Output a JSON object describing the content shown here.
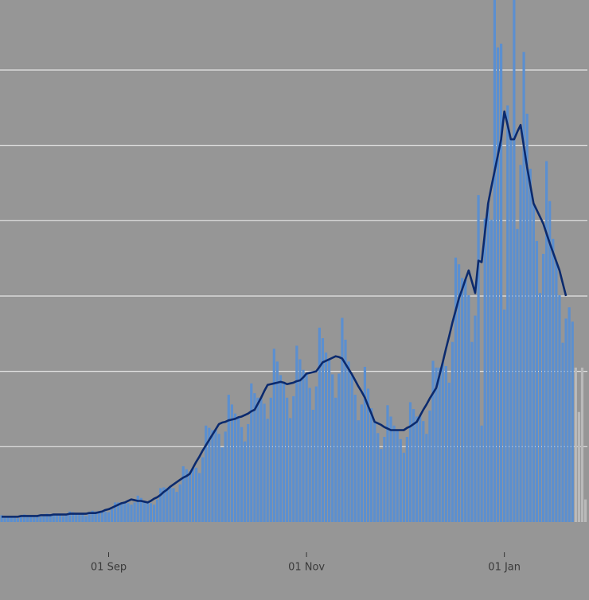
{
  "chart_data": {
    "type": "bar",
    "categories": [
      null,
      null,
      null,
      null,
      null,
      null,
      null,
      null,
      null,
      null,
      null,
      null,
      null,
      null,
      null,
      null,
      null,
      null,
      null,
      null,
      null,
      null,
      null,
      null,
      null,
      null,
      null,
      null,
      null,
      null,
      null,
      null,
      null,
      "01 Sep",
      null,
      null,
      null,
      null,
      null,
      null,
      null,
      null,
      null,
      null,
      null,
      null,
      null,
      null,
      null,
      null,
      null,
      null,
      null,
      null,
      null,
      null,
      null,
      null,
      null,
      null,
      null,
      null,
      null,
      null,
      null,
      null,
      null,
      null,
      null,
      null,
      null,
      null,
      null,
      null,
      null,
      null,
      null,
      null,
      null,
      null,
      null,
      null,
      null,
      null,
      null,
      null,
      null,
      null,
      null,
      null,
      null,
      null,
      null,
      null,
      "01 Nov",
      null,
      null,
      null,
      null,
      null,
      null,
      null,
      null,
      null,
      null,
      null,
      null,
      null,
      null,
      null,
      null,
      null,
      null,
      null,
      null,
      null,
      null,
      null,
      null,
      null,
      null,
      null,
      null,
      null,
      null,
      null,
      null,
      null,
      null,
      null,
      null,
      null,
      null,
      null,
      null,
      null,
      null,
      null,
      null,
      null,
      null,
      null,
      null,
      null,
      null,
      null,
      null,
      null,
      null,
      null,
      null,
      null,
      null,
      null,
      null,
      "01 Jan",
      null,
      null,
      null,
      null,
      null,
      null,
      null,
      null,
      null,
      null,
      null,
      null,
      null,
      null,
      null,
      null,
      null,
      null,
      null,
      null,
      null,
      null,
      null,
      null,
      null
    ],
    "series": [
      {
        "color": "#5b8fd0",
        "values": [
          0.09,
          0.08,
          0.07,
          0.07,
          0.06,
          0.05,
          0.07,
          0.1,
          0.09,
          0.08,
          0.08,
          0.07,
          0.07,
          0.08,
          0.11,
          0.1,
          0.11,
          0.1,
          0.09,
          0.08,
          0.09,
          0.14,
          0.13,
          0.12,
          0.11,
          0.1,
          0.08,
          0.11,
          0.15,
          0.14,
          0.14,
          0.14,
          0.14,
          0.13,
          0.17,
          0.26,
          0.26,
          0.26,
          0.26,
          0.25,
          0.23,
          0.26,
          0.35,
          0.32,
          0.28,
          0.26,
          0.25,
          0.23,
          0.3,
          0.45,
          0.46,
          0.45,
          0.47,
          0.45,
          0.4,
          0.5,
          0.74,
          0.7,
          0.67,
          0.72,
          0.72,
          0.65,
          0.86,
          1.28,
          1.25,
          1.22,
          1.23,
          1.17,
          0.99,
          1.2,
          1.69,
          1.56,
          1.44,
          1.39,
          1.26,
          1.07,
          1.3,
          1.84,
          1.71,
          1.65,
          1.65,
          1.57,
          1.37,
          1.65,
          2.3,
          2.13,
          1.95,
          1.85,
          1.65,
          1.38,
          1.67,
          2.34,
          2.16,
          2.02,
          1.97,
          1.78,
          1.49,
          1.8,
          2.58,
          2.44,
          2.25,
          2.16,
          1.96,
          1.65,
          1.97,
          2.71,
          2.42,
          2.13,
          1.96,
          1.69,
          1.35,
          1.56,
          2.06,
          1.77,
          1.51,
          1.33,
          1.18,
          0.97,
          1.13,
          1.55,
          1.4,
          1.28,
          1.22,
          1.1,
          0.92,
          1.13,
          1.59,
          1.5,
          1.4,
          1.41,
          1.34,
          1.17,
          1.48,
          2.14,
          2.05,
          2.05,
          2.12,
          2.07,
          1.85,
          2.39,
          3.51,
          3.42,
          3.24,
          3.22,
          3.01,
          2.39,
          2.74,
          4.34,
          1.28,
          4.03,
          4.23,
          4.01,
          7.2,
          6.3,
          6.35,
          2.82,
          5.53,
          5.08,
          7.0,
          3.89,
          4.74,
          6.24,
          5.42,
          4.69,
          4.23,
          3.73,
          3.04,
          3.56,
          4.79,
          4.26,
          3.76,
          3.46,
          3.01,
          2.38,
          2.7,
          2.85,
          2.66,
          null,
          null,
          null,
          null
        ]
      },
      {
        "color": "#bababa",
        "values": [
          null,
          null,
          null,
          null,
          null,
          null,
          null,
          null,
          null,
          null,
          null,
          null,
          null,
          null,
          null,
          null,
          null,
          null,
          null,
          null,
          null,
          null,
          null,
          null,
          null,
          null,
          null,
          null,
          null,
          null,
          null,
          null,
          null,
          null,
          null,
          null,
          null,
          null,
          null,
          null,
          null,
          null,
          null,
          null,
          null,
          null,
          null,
          null,
          null,
          null,
          null,
          null,
          null,
          null,
          null,
          null,
          null,
          null,
          null,
          null,
          null,
          null,
          null,
          null,
          null,
          null,
          null,
          null,
          null,
          null,
          null,
          null,
          null,
          null,
          null,
          null,
          null,
          null,
          null,
          null,
          null,
          null,
          null,
          null,
          null,
          null,
          null,
          null,
          null,
          null,
          null,
          null,
          null,
          null,
          null,
          null,
          null,
          null,
          null,
          null,
          null,
          null,
          null,
          null,
          null,
          null,
          null,
          null,
          null,
          null,
          null,
          null,
          null,
          null,
          null,
          null,
          null,
          null,
          null,
          null,
          null,
          null,
          null,
          null,
          null,
          null,
          null,
          null,
          null,
          null,
          null,
          null,
          null,
          null,
          null,
          null,
          null,
          null,
          null,
          null,
          null,
          null,
          null,
          null,
          null,
          null,
          null,
          null,
          null,
          null,
          null,
          null,
          null,
          null,
          null,
          null,
          null,
          null,
          null,
          null,
          null,
          null,
          null,
          null,
          null,
          null,
          null,
          null,
          null,
          null,
          null,
          null,
          null,
          null,
          null,
          null,
          null,
          2.05,
          1.46,
          2.05,
          0.3
        ]
      }
    ],
    "line": {
      "color": "#0b2a6e",
      "values": [
        0.07,
        0.07,
        0.07,
        0.07,
        0.07,
        0.07,
        0.08,
        0.08,
        0.08,
        0.08,
        0.08,
        0.08,
        0.09,
        0.09,
        0.09,
        0.09,
        0.1,
        0.1,
        0.1,
        0.1,
        0.1,
        0.11,
        0.11,
        0.11,
        0.11,
        0.11,
        0.11,
        0.12,
        0.12,
        0.12,
        0.13,
        0.14,
        0.16,
        0.17,
        0.19,
        0.21,
        0.23,
        0.25,
        0.26,
        0.28,
        0.3,
        0.29,
        0.28,
        0.28,
        0.27,
        0.26,
        0.28,
        0.31,
        0.33,
        0.36,
        0.4,
        0.43,
        0.47,
        0.5,
        0.53,
        0.56,
        0.59,
        0.61,
        0.64,
        0.72,
        0.8,
        0.87,
        0.95,
        1.02,
        1.09,
        1.16,
        1.23,
        1.3,
        1.32,
        1.33,
        1.35,
        1.36,
        1.37,
        1.39,
        1.4,
        1.42,
        1.44,
        1.47,
        1.49,
        1.57,
        1.65,
        1.74,
        1.82,
        1.83,
        1.84,
        1.85,
        1.86,
        1.85,
        1.83,
        1.84,
        1.85,
        1.87,
        1.88,
        1.92,
        1.97,
        1.98,
        1.99,
        2.0,
        2.06,
        2.12,
        2.14,
        2.16,
        2.18,
        2.2,
        2.19,
        2.17,
        2.1,
        2.03,
        1.96,
        1.88,
        1.8,
        1.73,
        1.65,
        1.54,
        1.44,
        1.33,
        1.31,
        1.29,
        1.26,
        1.24,
        1.22,
        1.22,
        1.22,
        1.22,
        1.22,
        1.25,
        1.27,
        1.3,
        1.33,
        1.41,
        1.49,
        1.56,
        1.64,
        1.71,
        1.78,
        1.95,
        2.12,
        2.3,
        2.47,
        2.65,
        2.81,
        2.97,
        3.09,
        3.22,
        3.34,
        3.19,
        3.04,
        3.47,
        3.45,
        3.84,
        4.23,
        4.45,
        4.66,
        4.87,
        5.08,
        5.45,
        5.27,
        5.08,
        5.08,
        5.18,
        5.27,
        4.99,
        4.71,
        4.47,
        4.23,
        4.14,
        4.05,
        3.96,
        3.83,
        3.7,
        3.58,
        3.46,
        3.34,
        3.17,
        3.0,
        null,
        null,
        null,
        null,
        null,
        null
      ]
    },
    "ylim": [
      0,
      7
    ],
    "yticks": [
      1,
      2,
      3,
      4,
      5,
      6
    ],
    "grid": true
  }
}
